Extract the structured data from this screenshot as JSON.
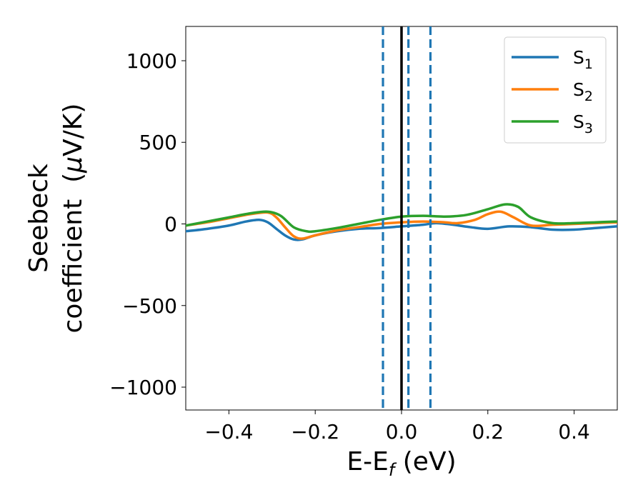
{
  "chart_data": {
    "type": "line",
    "xlabel": "E-E_f (eV)",
    "xlabel_parts": {
      "main": "E-E",
      "sub": "f",
      "unit": " (eV)"
    },
    "ylabel_line1": "Seebeck",
    "ylabel_line2_text": "coefficient  (",
    "ylabel_mu": "μ",
    "ylabel_unit_tail": "V/K)",
    "xlim": [
      -0.5,
      0.5
    ],
    "ylim": [
      -1140,
      1210
    ],
    "xticks": [
      -0.4,
      -0.2,
      0.0,
      0.2,
      0.4
    ],
    "xtick_labels": [
      "−0.4",
      "−0.2",
      "0.0",
      "0.2",
      "0.4"
    ],
    "yticks": [
      -1000,
      -500,
      0,
      500,
      1000
    ],
    "ytick_labels": [
      "−1000",
      "−500",
      "0",
      "500",
      "1000"
    ],
    "grid": false,
    "legend_position": "top-right",
    "series": [
      {
        "name": "S1",
        "name_main": "S",
        "name_sub": "1",
        "color": "#1f77b4",
        "x": [
          -0.5,
          -0.45,
          -0.4,
          -0.36,
          -0.33,
          -0.31,
          -0.29,
          -0.27,
          -0.25,
          -0.23,
          -0.2,
          -0.15,
          -0.1,
          -0.05,
          0.0,
          0.05,
          0.08,
          0.12,
          0.16,
          0.2,
          0.25,
          0.3,
          0.35,
          0.4,
          0.45,
          0.5
        ],
        "y": [
          -45,
          -30,
          -10,
          15,
          25,
          10,
          -30,
          -70,
          -95,
          -95,
          -70,
          -45,
          -30,
          -25,
          -15,
          -5,
          5,
          -5,
          -20,
          -30,
          -15,
          -20,
          -35,
          -35,
          -25,
          -15
        ]
      },
      {
        "name": "S2",
        "name_main": "S",
        "name_sub": "2",
        "color": "#ff7f0e",
        "x": [
          -0.5,
          -0.45,
          -0.4,
          -0.35,
          -0.31,
          -0.29,
          -0.27,
          -0.25,
          -0.23,
          -0.2,
          -0.15,
          -0.1,
          -0.05,
          0.0,
          0.05,
          0.1,
          0.13,
          0.17,
          0.2,
          0.23,
          0.26,
          0.3,
          0.35,
          0.4,
          0.45,
          0.5
        ],
        "y": [
          -10,
          10,
          35,
          60,
          70,
          40,
          -20,
          -75,
          -90,
          -70,
          -40,
          -20,
          0,
          10,
          15,
          10,
          5,
          25,
          60,
          75,
          40,
          -10,
          -5,
          0,
          5,
          10
        ]
      },
      {
        "name": "S3",
        "name_main": "S",
        "name_sub": "3",
        "color": "#2ca02c",
        "x": [
          -0.5,
          -0.45,
          -0.4,
          -0.35,
          -0.31,
          -0.28,
          -0.25,
          -0.22,
          -0.2,
          -0.15,
          -0.1,
          -0.05,
          0.0,
          0.05,
          0.1,
          0.15,
          0.2,
          0.24,
          0.27,
          0.3,
          0.35,
          0.4,
          0.45,
          0.5
        ],
        "y": [
          -10,
          15,
          40,
          65,
          75,
          50,
          -20,
          -45,
          -45,
          -25,
          0,
          25,
          45,
          50,
          45,
          55,
          90,
          120,
          105,
          40,
          5,
          5,
          10,
          15
        ]
      }
    ],
    "vertical_lines": [
      {
        "x": 0.0,
        "style": "solid",
        "color": "#000000"
      },
      {
        "x": -0.043,
        "style": "dashed",
        "color": "#1f77b4"
      },
      {
        "x": 0.016,
        "style": "dashed",
        "color": "#1f77b4"
      },
      {
        "x": 0.067,
        "style": "dashed",
        "color": "#1f77b4"
      }
    ]
  }
}
